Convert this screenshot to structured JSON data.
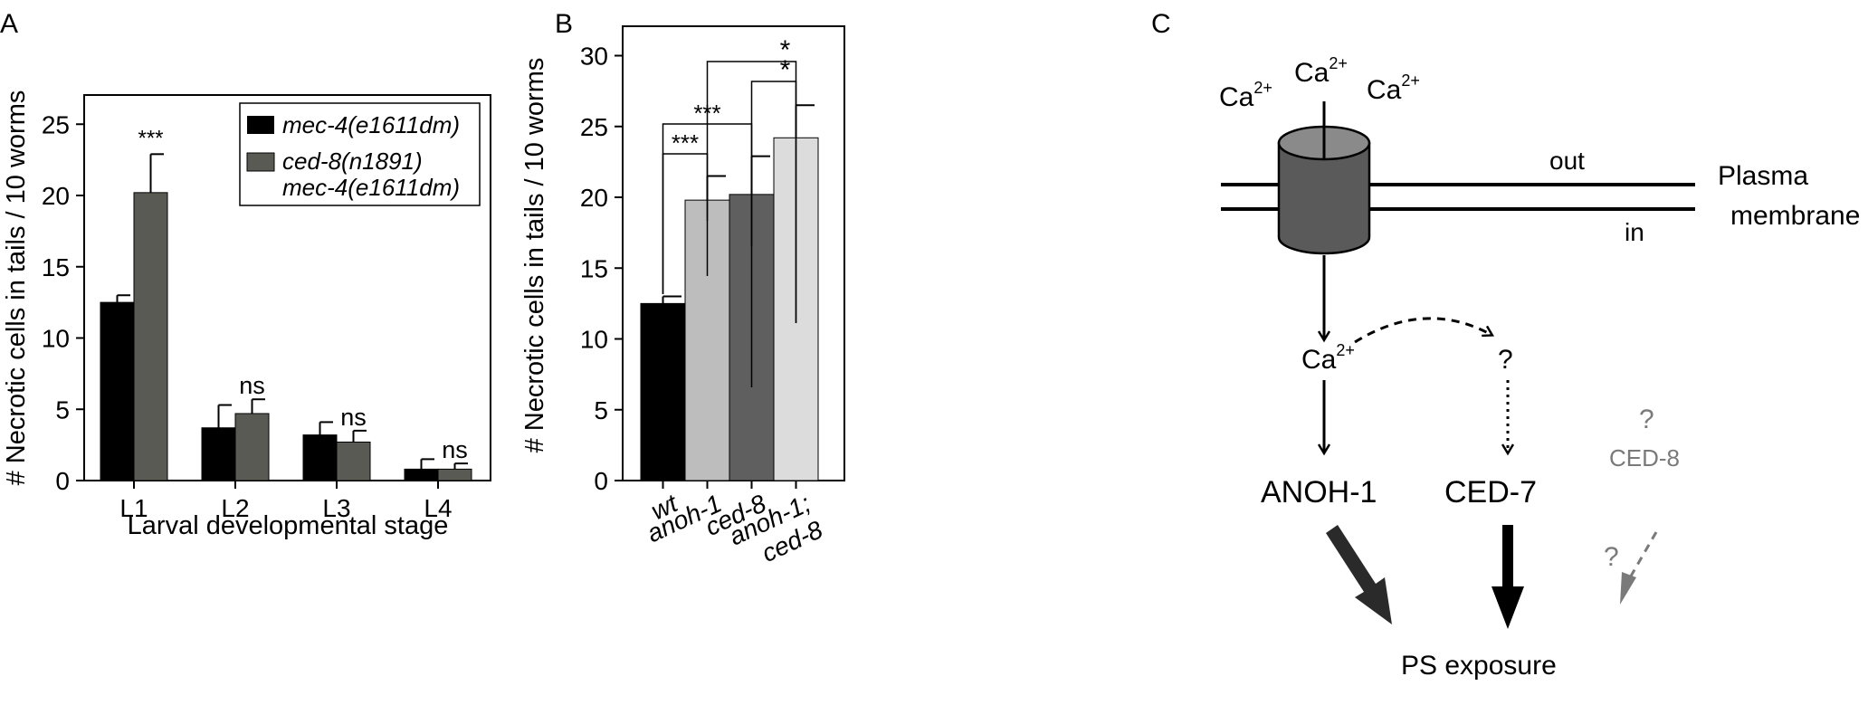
{
  "panel_labels": {
    "a": "A",
    "b": "B",
    "c": "C"
  },
  "chart_data": [
    {
      "type": "bar",
      "panel": "A",
      "title": "",
      "xlabel": "Larval developmental stage",
      "ylabel": "# Necrotic cells in tails / 10 worms",
      "ylim": [
        0,
        27
      ],
      "yticks": [
        "0",
        "5",
        "10",
        "15",
        "20",
        "25"
      ],
      "categories": [
        "L1",
        "L2",
        "L3",
        "L4"
      ],
      "series": [
        {
          "name": "mec-4(e1611dm)",
          "color": "#000000",
          "values": [
            12.5,
            3.7,
            3.2,
            0.8
          ],
          "errors": [
            0.5,
            1.6,
            0.9,
            0.7
          ]
        },
        {
          "name": "ced-8(n1891)",
          "name_line2": "mec-4(e1611dm)",
          "color": "#5a5a55",
          "values": [
            20.2,
            4.7,
            2.7,
            0.8
          ],
          "errors": [
            2.7,
            1.0,
            0.8,
            0.4
          ]
        }
      ],
      "significance": [
        "***",
        "ns",
        "ns",
        "ns"
      ],
      "legend": "top-right",
      "grid": false
    },
    {
      "type": "bar",
      "panel": "B",
      "title": "",
      "xlabel": "",
      "ylabel": "# Necrotic cells in tails / 10 worms",
      "ylim": [
        0,
        30
      ],
      "yticks": [
        "0",
        "5",
        "10",
        "15",
        "20",
        "25",
        "30"
      ],
      "categories": [
        {
          "line1": "wt",
          "line2": ""
        },
        {
          "line1": "anoh-1",
          "line2": ""
        },
        {
          "line1": "ced-8",
          "line2": ""
        },
        {
          "line1": "anoh-1;",
          "line2": "ced-8"
        }
      ],
      "values": [
        12.5,
        19.8,
        20.2,
        24.2
      ],
      "errors": [
        0.5,
        1.7,
        2.7,
        2.3
      ],
      "colors": [
        "#000000",
        "#bdbdbd",
        "#5f5f5f",
        "#dcdcdc"
      ],
      "brackets": [
        {
          "from": 0,
          "to": 1,
          "label": "***"
        },
        {
          "from": 0,
          "to": 2,
          "label": "***"
        },
        {
          "from": 2,
          "to": 3,
          "label": "*"
        },
        {
          "from": 1,
          "to": 3,
          "label": "*"
        }
      ],
      "grid": false
    }
  ],
  "diagram": {
    "ca_label": "Ca",
    "ca_charge": "2+",
    "out_label": "out",
    "in_label": "in",
    "membrane_line1": "Plasma",
    "membrane_line2": "membrane",
    "question": "?",
    "anoh1": "ANOH-1",
    "ced7": "CED-7",
    "ced8": "CED-8",
    "ps": "PS exposure",
    "colors": {
      "channel": "#5a5a5a",
      "channel_top": "#8a8a8a",
      "unknown": "#7a7a7a",
      "arrow": "#2a2a2a"
    }
  }
}
